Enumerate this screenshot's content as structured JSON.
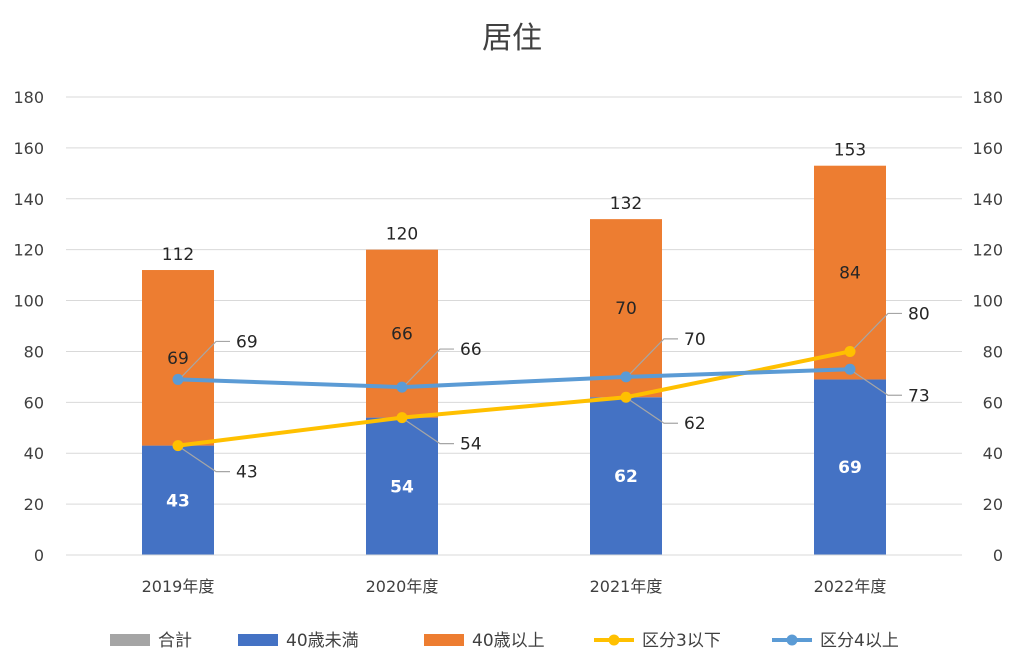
{
  "chart_data": {
    "type": "bar",
    "title": "居住",
    "categories": [
      "2019年度",
      "2020年度",
      "2021年度",
      "2022年度"
    ],
    "series": [
      {
        "name": "合計",
        "kind": "hidden-total",
        "values": [
          112,
          120,
          132,
          153
        ],
        "color": "#a5a5a5"
      },
      {
        "name": "40歳未満",
        "kind": "stacked-bar",
        "values": [
          43,
          54,
          62,
          69
        ],
        "color": "#4472c4"
      },
      {
        "name": "40歳以上",
        "kind": "stacked-bar",
        "values": [
          69,
          66,
          70,
          84
        ],
        "color": "#ed7d31"
      },
      {
        "name": "区分3以下",
        "kind": "line",
        "values": [
          43,
          54,
          62,
          80
        ],
        "color": "#ffc000"
      },
      {
        "name": "区分4以上",
        "kind": "line",
        "values": [
          69,
          66,
          70,
          73
        ],
        "color": "#5b9bd5"
      }
    ],
    "ylim": [
      0,
      180
    ],
    "yticks": [
      0,
      20,
      40,
      60,
      80,
      100,
      120,
      140,
      160,
      180
    ],
    "y2lim": [
      0,
      180
    ],
    "grid": true,
    "legend_position": "bottom"
  }
}
